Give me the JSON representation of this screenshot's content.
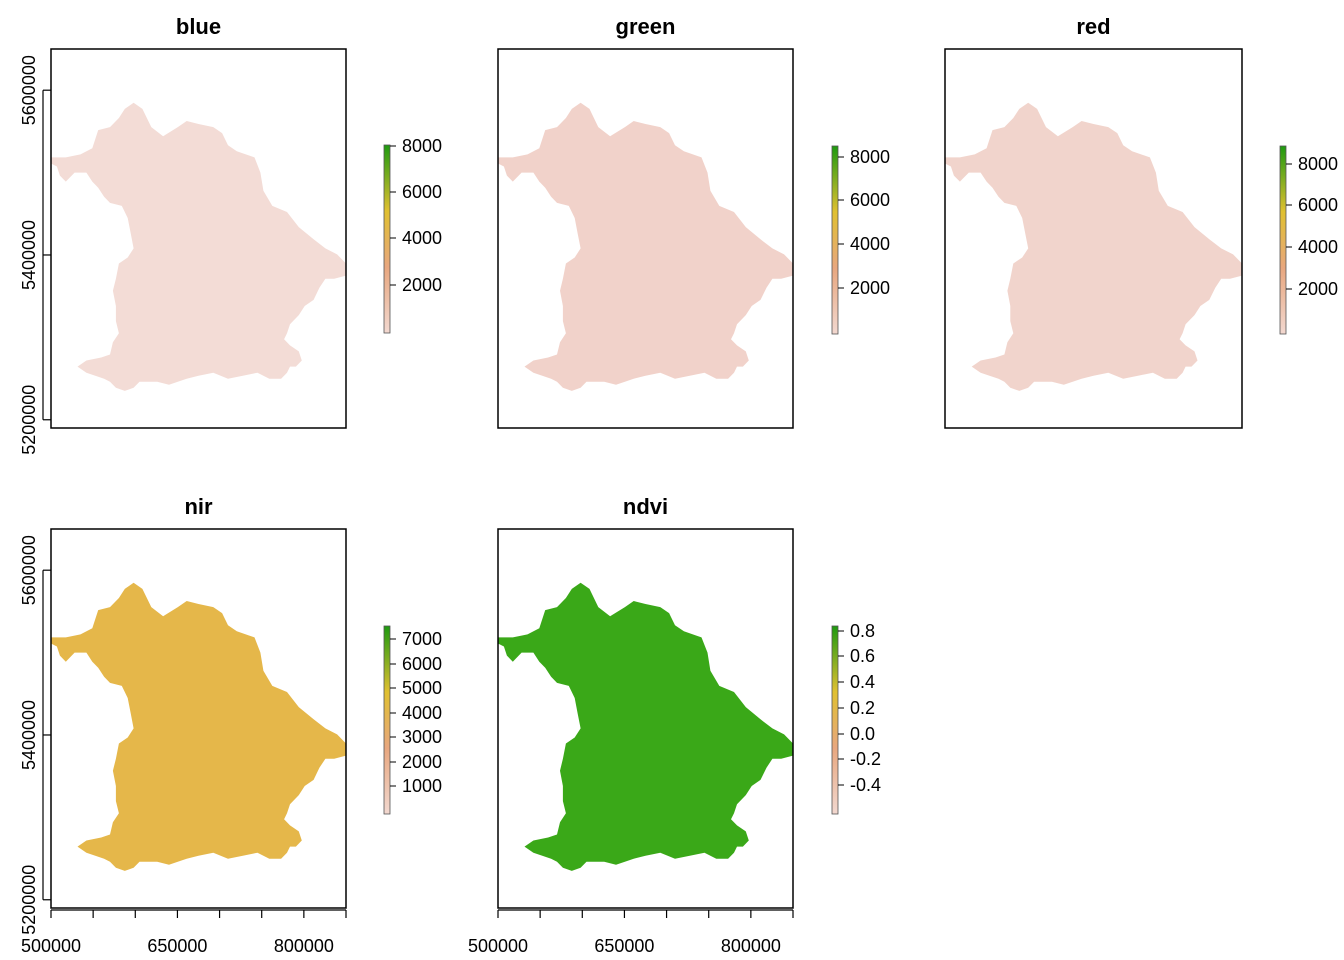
{
  "chart_data": {
    "type": "heatmap",
    "description_layout": "raster panels",
    "x_axis": {
      "ticks": [
        500000,
        650000,
        800000
      ],
      "range": [
        500000,
        850000
      ]
    },
    "y_axis": {
      "ticks": [
        5200000,
        5400000,
        5600000
      ],
      "range": [
        5190000,
        5650000
      ]
    },
    "colors": {
      "low": "#f2d8d0",
      "mid_low": "#e8a77f",
      "mid": "#e0c030",
      "high": "#1f9a10",
      "frame": "#000000"
    },
    "panels": [
      {
        "title": "blue",
        "legend": [
          "8000",
          "6000",
          "4000",
          "2000"
        ],
        "fill": "#f3dcd6",
        "show_y": true,
        "show_x": false
      },
      {
        "title": "green",
        "legend": [
          "8000",
          "6000",
          "4000",
          "2000"
        ],
        "fill": "#f1d2ca",
        "show_y": false,
        "show_x": false
      },
      {
        "title": "red",
        "legend": [
          "8000",
          "6000",
          "4000",
          "2000"
        ],
        "fill": "#f1d4cc",
        "show_y": false,
        "show_x": false
      },
      {
        "title": "nir",
        "legend": [
          "7000",
          "6000",
          "5000",
          "4000",
          "3000",
          "2000",
          "1000"
        ],
        "fill": "#e5b74a",
        "show_y": true,
        "show_x": true
      },
      {
        "title": "ndvi",
        "legend": [
          "0.8",
          "0.6",
          "0.4",
          "0.2",
          "0.0",
          "-0.2",
          "-0.4"
        ],
        "fill": "#3aa818",
        "show_y": false,
        "show_x": true
      }
    ]
  }
}
